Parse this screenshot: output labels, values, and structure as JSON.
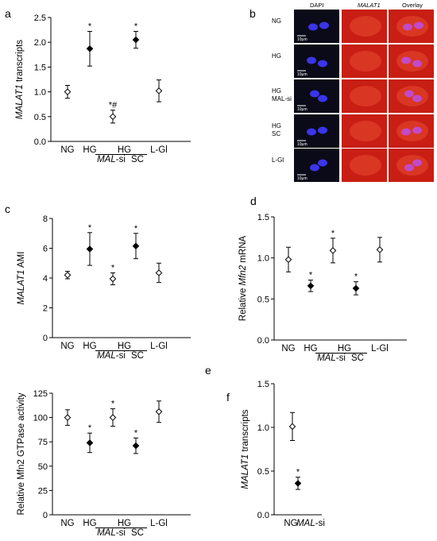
{
  "panel_letters": {
    "a": "a",
    "b": "b",
    "c": "c",
    "d": "d",
    "e": "e",
    "f": "f"
  },
  "groups": {
    "ng": "NG",
    "hg": "HG",
    "hg2": "HG",
    "sc": "SC",
    "lgl": "L-Gl",
    "mal_italic": "MAL",
    "mal_suffix": "-si"
  },
  "micrograph": {
    "columns": [
      "DAPI",
      "MALAT1",
      "Overlay"
    ],
    "rows": [
      {
        "label": "NG",
        "sublabel": ""
      },
      {
        "label": "HG",
        "sublabel": ""
      },
      {
        "label": "HG",
        "sublabel": "MAL-si"
      },
      {
        "label": "HG",
        "sublabel": "SC"
      },
      {
        "label": "L-Gl",
        "sublabel": ""
      }
    ],
    "scale_bar": "10μm",
    "colors": {
      "dapi_bg": "#0a0a18",
      "nucleus": "#3a35e8",
      "malat1": "#c81e14",
      "overlay_nucleus": "#c24ac8"
    }
  },
  "chart_data": [
    {
      "id": "a",
      "type": "scatter",
      "categories": [
        "NG",
        "HG",
        "HG MAL-si",
        "HG SC",
        "L-Gl"
      ],
      "values": [
        1.0,
        1.87,
        0.5,
        2.05,
        1.02
      ],
      "errors": [
        0.13,
        0.35,
        0.13,
        0.17,
        0.22
      ],
      "filled": [
        false,
        true,
        false,
        true,
        false
      ],
      "markers": [
        "",
        "*",
        "*#",
        "*",
        ""
      ],
      "ylabel_italic": "MALAT1",
      "ylabel_rest": " transcripts",
      "ylim": [
        0,
        2.5
      ],
      "yticks": [
        "0.0",
        "0.5",
        "1.0",
        "1.5",
        "2.0",
        "2.5"
      ]
    },
    {
      "id": "c",
      "type": "scatter",
      "categories": [
        "NG",
        "HG",
        "HG MAL-si",
        "HG SC",
        "L-Gl"
      ],
      "values": [
        4.2,
        5.95,
        3.95,
        6.15,
        4.35
      ],
      "errors": [
        0.25,
        1.1,
        0.4,
        0.85,
        0.65
      ],
      "filled": [
        false,
        true,
        false,
        true,
        false
      ],
      "markers": [
        "",
        "*",
        "*",
        "*",
        ""
      ],
      "ylabel_italic": "MALAT1",
      "ylabel_rest": " AMI",
      "ylim": [
        0,
        8
      ],
      "yticks": [
        "0",
        "2",
        "4",
        "6",
        "8"
      ]
    },
    {
      "id": "d",
      "type": "scatter",
      "categories": [
        "NG",
        "HG",
        "HG MAL-si",
        "HG SC",
        "L-Gl"
      ],
      "values": [
        0.98,
        0.66,
        1.09,
        0.63,
        1.1
      ],
      "errors": [
        0.15,
        0.07,
        0.15,
        0.08,
        0.15
      ],
      "filled": [
        false,
        true,
        false,
        true,
        false
      ],
      "markers": [
        "",
        "*",
        "*",
        "*",
        ""
      ],
      "ylabel_pre": "Relative ",
      "ylabel_italic": "Mfn2",
      "ylabel_rest": " mRNA",
      "ylim": [
        0,
        1.5
      ],
      "yticks": [
        "0.0",
        "0.5",
        "1.0",
        "1.5"
      ]
    },
    {
      "id": "e",
      "type": "scatter",
      "categories": [
        "NG",
        "HG",
        "HG MAL-si",
        "HG SC",
        "L-Gl"
      ],
      "values": [
        100,
        74,
        100,
        71,
        106
      ],
      "errors": [
        8,
        10,
        9,
        8,
        11
      ],
      "filled": [
        false,
        true,
        false,
        true,
        false
      ],
      "markers": [
        "",
        "*",
        "*",
        "*",
        ""
      ],
      "ylabel_plain": "Relative Mfn2 GTPase activity",
      "ylim": [
        0,
        125
      ],
      "yticks": [
        "0",
        "25",
        "50",
        "75",
        "100",
        "125"
      ]
    },
    {
      "id": "f",
      "type": "scatter",
      "categories": [
        "NG",
        "MAL-si"
      ],
      "values": [
        1.01,
        0.36
      ],
      "errors": [
        0.16,
        0.07
      ],
      "filled": [
        false,
        true
      ],
      "markers": [
        "",
        "*"
      ],
      "ylabel_italic": "MALAT1",
      "ylabel_rest": " transcripts",
      "ylim": [
        0,
        1.5
      ],
      "yticks": [
        "0.0",
        "0.5",
        "1.0",
        "1.5"
      ]
    }
  ]
}
